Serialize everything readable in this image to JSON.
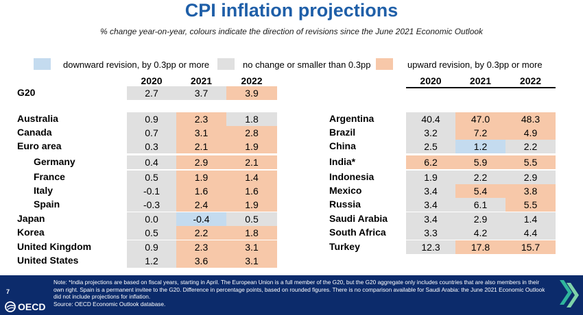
{
  "title": "CPI inflation projections",
  "subtitle": "% change year-on-year, colours indicate the direction of revisions since the June 2021 Economic Outlook",
  "legend": [
    {
      "label": "downward revision, by 0.3pp or more",
      "color": "#c4dbef"
    },
    {
      "label": "no change or smaller than 0.3pp",
      "color": "#e0e0e0"
    },
    {
      "label": "upward revision, by 0.3pp or more",
      "color": "#f7c8a9"
    }
  ],
  "colors": {
    "down": "#c4dbef",
    "same": "#e0e0e0",
    "up": "#f7c8a9",
    "title": "#1f5fa8",
    "footer": "#0c2b6b"
  },
  "years": [
    "2020",
    "2021",
    "2022"
  ],
  "left_table": [
    {
      "name": "G20",
      "values": [
        "2.7",
        "3.7",
        "3.9"
      ],
      "rev": [
        "same",
        "same",
        "up"
      ],
      "indent": false
    },
    {
      "name": "Australia",
      "values": [
        "0.9",
        "2.3",
        "1.8"
      ],
      "rev": [
        "same",
        "up",
        "same"
      ],
      "indent": false
    },
    {
      "name": "Canada",
      "values": [
        "0.7",
        "3.1",
        "2.8"
      ],
      "rev": [
        "same",
        "up",
        "up"
      ],
      "indent": false
    },
    {
      "name": "Euro area",
      "values": [
        "0.3",
        "2.1",
        "1.9"
      ],
      "rev": [
        "same",
        "up",
        "up"
      ],
      "indent": false
    },
    {
      "name": "Germany",
      "values": [
        "0.4",
        "2.9",
        "2.1"
      ],
      "rev": [
        "same",
        "up",
        "up"
      ],
      "indent": true
    },
    {
      "name": "France",
      "values": [
        "0.5",
        "1.9",
        "1.4"
      ],
      "rev": [
        "same",
        "up",
        "up"
      ],
      "indent": true
    },
    {
      "name": "Italy",
      "values": [
        "-0.1",
        "1.6",
        "1.6"
      ],
      "rev": [
        "same",
        "up",
        "up"
      ],
      "indent": true
    },
    {
      "name": "Spain",
      "values": [
        "-0.3",
        "2.4",
        "1.9"
      ],
      "rev": [
        "same",
        "up",
        "up"
      ],
      "indent": true
    },
    {
      "name": "Japan",
      "values": [
        "0.0",
        "-0.4",
        "0.5"
      ],
      "rev": [
        "same",
        "down",
        "same"
      ],
      "indent": false
    },
    {
      "name": "Korea",
      "values": [
        "0.5",
        "2.2",
        "1.8"
      ],
      "rev": [
        "same",
        "up",
        "up"
      ],
      "indent": false
    },
    {
      "name": "United Kingdom",
      "values": [
        "0.9",
        "2.3",
        "3.1"
      ],
      "rev": [
        "same",
        "up",
        "up"
      ],
      "indent": false
    },
    {
      "name": "United States",
      "values": [
        "1.2",
        "3.6",
        "3.1"
      ],
      "rev": [
        "same",
        "up",
        "up"
      ],
      "indent": false
    }
  ],
  "right_table": [
    {
      "name": "Argentina",
      "values": [
        "40.4",
        "47.0",
        "48.3"
      ],
      "rev": [
        "same",
        "up",
        "up"
      ]
    },
    {
      "name": "Brazil",
      "values": [
        "3.2",
        "7.2",
        "4.9"
      ],
      "rev": [
        "same",
        "up",
        "up"
      ]
    },
    {
      "name": "China",
      "values": [
        "2.5",
        "1.2",
        "2.2"
      ],
      "rev": [
        "same",
        "down",
        "same"
      ]
    },
    {
      "name": "India*",
      "values": [
        "6.2",
        "5.9",
        "5.5"
      ],
      "rev": [
        "up",
        "up",
        "up"
      ]
    },
    {
      "name": "Indonesia",
      "values": [
        "1.9",
        "2.2",
        "2.9"
      ],
      "rev": [
        "same",
        "same",
        "same"
      ]
    },
    {
      "name": "Mexico",
      "values": [
        "3.4",
        "5.4",
        "3.8"
      ],
      "rev": [
        "same",
        "up",
        "up"
      ]
    },
    {
      "name": "Russia",
      "values": [
        "3.4",
        "6.1",
        "5.5"
      ],
      "rev": [
        "same",
        "same",
        "up"
      ]
    },
    {
      "name": "Saudi Arabia",
      "values": [
        "3.4",
        "2.9",
        "1.4"
      ],
      "rev": [
        "same",
        "same",
        "same"
      ]
    },
    {
      "name": "South Africa",
      "values": [
        "3.3",
        "4.2",
        "4.4"
      ],
      "rev": [
        "same",
        "same",
        "same"
      ]
    },
    {
      "name": "Turkey",
      "values": [
        "12.3",
        "17.8",
        "15.7"
      ],
      "rev": [
        "same",
        "up",
        "up"
      ]
    }
  ],
  "footer": {
    "page_number": "7",
    "note": "Note: *India projections are based on fiscal years, starting in April. The European Union is a full member of the G20, but the G20 aggregate only includes countries that are also members in their own right. Spain is a permanent invitee to the G20. Difference in percentage points, based on rounded figures. There is no comparison available for Saudi Arabia: the June 2021 Economic Outlook did not include projections for inflation.",
    "source": "Source: OECD Economic Outlook database.",
    "logo_text": "OECD"
  }
}
